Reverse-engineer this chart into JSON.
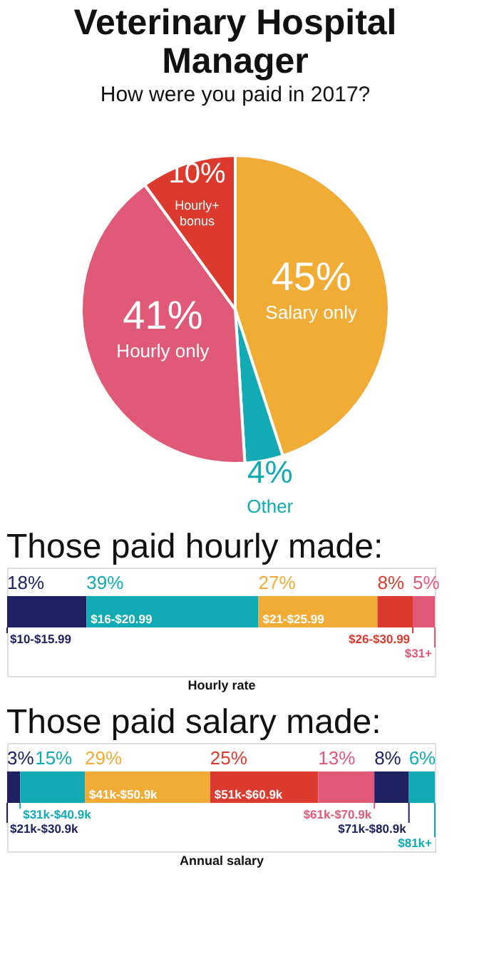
{
  "chart_data": [
    {
      "type": "pie",
      "title": "Veterinary Hospital Manager",
      "subtitle": "How were you paid in 2017?",
      "categories": [
        "Salary only",
        "Other",
        "Hourly only",
        "Hourly+ bonus"
      ],
      "values": [
        45,
        4,
        41,
        10
      ],
      "colors": [
        "#f0ac35",
        "#12aab5",
        "#e05a78",
        "#dc3a2e"
      ],
      "value_labels": [
        "45%",
        "4%",
        "41%",
        "10%"
      ]
    },
    {
      "type": "bar",
      "title": "Those paid hourly made:",
      "legend": "bottom",
      "orientation": "horizontal",
      "stacked": true,
      "categories": [
        null
      ],
      "xlabel": "Hourly rate",
      "xlim": [
        0,
        97
      ],
      "series": [
        {
          "name": "$10-$15.99",
          "color": "#1f2163",
          "values": [
            18
          ],
          "value_labels": [
            "18%"
          ]
        },
        {
          "name": "$16-$20.99",
          "color": "#12aab5",
          "values": [
            39
          ],
          "value_labels": [
            "39%"
          ]
        },
        {
          "name": "$21-$25.99",
          "color": "#f0ac35",
          "values": [
            27
          ],
          "value_labels": [
            "27%"
          ]
        },
        {
          "name": "$26-$30.99",
          "color": "#dc3a2e",
          "values": [
            8
          ],
          "value_labels": [
            "8%"
          ]
        },
        {
          "name": "$31+",
          "color": "#e05a78",
          "values": [
            5
          ],
          "value_labels": [
            "5%"
          ]
        }
      ]
    },
    {
      "type": "bar",
      "title": "Those paid salary made:",
      "legend": "bottom",
      "orientation": "horizontal",
      "stacked": true,
      "categories": [
        null
      ],
      "xlabel": "Annual salary",
      "xlim": [
        0,
        99
      ],
      "series": [
        {
          "name": "$21k-$30.9k",
          "color": "#1f2163",
          "values": [
            3
          ],
          "value_labels": [
            "3%"
          ]
        },
        {
          "name": "$31k-$40.9k",
          "color": "#12aab5",
          "values": [
            15
          ],
          "value_labels": [
            "15%"
          ]
        },
        {
          "name": "$41k-$50.9k",
          "color": "#f0ac35",
          "values": [
            29
          ],
          "value_labels": [
            "29%"
          ]
        },
        {
          "name": "$51k-$60.9k",
          "color": "#dc3a2e",
          "values": [
            25
          ],
          "value_labels": [
            "25%"
          ]
        },
        {
          "name": "$61k-$70.9k",
          "color": "#e05a78",
          "values": [
            13
          ],
          "value_labels": [
            "13%"
          ]
        },
        {
          "name": "$71k-$80.9k",
          "color": "#1f2163",
          "values": [
            8
          ],
          "value_labels": [
            "8%"
          ]
        },
        {
          "name": "$81k+",
          "color": "#12aab5",
          "values": [
            6
          ],
          "value_labels": [
            "6%"
          ]
        }
      ]
    }
  ]
}
